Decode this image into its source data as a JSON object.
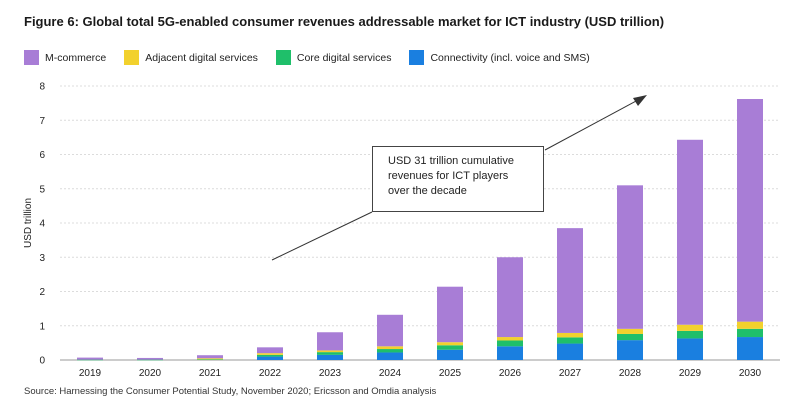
{
  "title": "Figure 6: Global total 5G-enabled consumer revenues addressable market for ICT industry (USD trillion)",
  "source": "Source: Harnessing the Consumer Potential Study, November 2020; Ericsson and Omdia analysis",
  "annotation": "USD 31 trillion cumulative\nrevenues for ICT players\nover the decade",
  "colors": {
    "m_commerce": "#a87dd6",
    "adjacent": "#f2d12d",
    "core": "#1fbf6a",
    "connectivity": "#1a7fe0"
  },
  "chart_data": {
    "type": "bar",
    "stacked": true,
    "ylabel": "USD trillion",
    "xlabel": "",
    "ylim": [
      0,
      8
    ],
    "yticks": [
      0,
      1,
      2,
      3,
      4,
      5,
      6,
      7,
      8
    ],
    "categories": [
      "2019",
      "2020",
      "2021",
      "2022",
      "2023",
      "2024",
      "2025",
      "2026",
      "2027",
      "2028",
      "2029",
      "2030"
    ],
    "series": [
      {
        "name": "Connectivity (incl. voice and SMS)",
        "color": "#1a7fe0",
        "values": [
          0.0,
          0.0,
          0.0,
          0.1,
          0.15,
          0.22,
          0.3,
          0.4,
          0.48,
          0.58,
          0.63,
          0.67
        ]
      },
      {
        "name": "Core digital services",
        "color": "#1fbf6a",
        "values": [
          0.01,
          0.01,
          0.02,
          0.05,
          0.08,
          0.1,
          0.13,
          0.17,
          0.18,
          0.18,
          0.22,
          0.24
        ]
      },
      {
        "name": "Adjacent digital services",
        "color": "#f2d12d",
        "values": [
          0.0,
          0.0,
          0.03,
          0.05,
          0.05,
          0.08,
          0.09,
          0.1,
          0.13,
          0.15,
          0.18,
          0.21
        ]
      },
      {
        "name": "M-commerce",
        "color": "#a87dd6",
        "values": [
          0.06,
          0.05,
          0.09,
          0.17,
          0.53,
          0.92,
          1.62,
          2.33,
          3.06,
          4.19,
          5.4,
          6.5
        ]
      }
    ],
    "legend_position": "top-left",
    "grid": true
  }
}
